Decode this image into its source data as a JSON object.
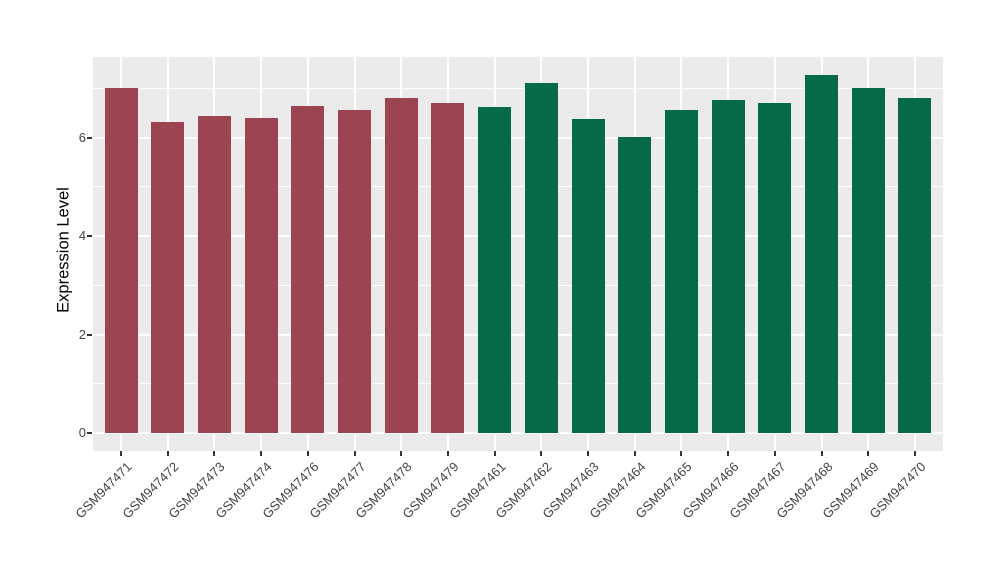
{
  "chart_data": {
    "type": "bar",
    "title": "",
    "xlabel": "",
    "ylabel": "Expression Level",
    "ylim": [
      0,
      7.64
    ],
    "yticks": [
      0,
      2,
      4,
      6
    ],
    "yticks_minor": [
      1,
      3,
      5,
      7
    ],
    "legend": "none",
    "panel_background": "#EBEBEB",
    "gridline_color": "#FFFFFF",
    "axis_text_color": "#444444",
    "group_colors": {
      "group1": "#9D4452",
      "group2": "#066A49"
    },
    "categories": [
      "GSM947471",
      "GSM947472",
      "GSM947473",
      "GSM947474",
      "GSM947476",
      "GSM947477",
      "GSM947478",
      "GSM947479",
      "GSM947461",
      "GSM947462",
      "GSM947463",
      "GSM947464",
      "GSM947465",
      "GSM947466",
      "GSM947467",
      "GSM947468",
      "GSM947469",
      "GSM947470"
    ],
    "bars": [
      {
        "label": "GSM947471",
        "value": 7.0,
        "group": "group1"
      },
      {
        "label": "GSM947472",
        "value": 6.32,
        "group": "group1"
      },
      {
        "label": "GSM947473",
        "value": 6.43,
        "group": "group1"
      },
      {
        "label": "GSM947474",
        "value": 6.4,
        "group": "group1"
      },
      {
        "label": "GSM947476",
        "value": 6.65,
        "group": "group1"
      },
      {
        "label": "GSM947477",
        "value": 6.56,
        "group": "group1"
      },
      {
        "label": "GSM947478",
        "value": 6.8,
        "group": "group1"
      },
      {
        "label": "GSM947479",
        "value": 6.71,
        "group": "group1"
      },
      {
        "label": "GSM947461",
        "value": 6.63,
        "group": "group2"
      },
      {
        "label": "GSM947462",
        "value": 7.11,
        "group": "group2"
      },
      {
        "label": "GSM947463",
        "value": 6.38,
        "group": "group2"
      },
      {
        "label": "GSM947464",
        "value": 6.01,
        "group": "group2"
      },
      {
        "label": "GSM947465",
        "value": 6.56,
        "group": "group2"
      },
      {
        "label": "GSM947466",
        "value": 6.77,
        "group": "group2"
      },
      {
        "label": "GSM947467",
        "value": 6.7,
        "group": "group2"
      },
      {
        "label": "GSM947468",
        "value": 7.27,
        "group": "group2"
      },
      {
        "label": "GSM947469",
        "value": 7.0,
        "group": "group2"
      },
      {
        "label": "GSM947470",
        "value": 6.81,
        "group": "group2"
      }
    ]
  }
}
